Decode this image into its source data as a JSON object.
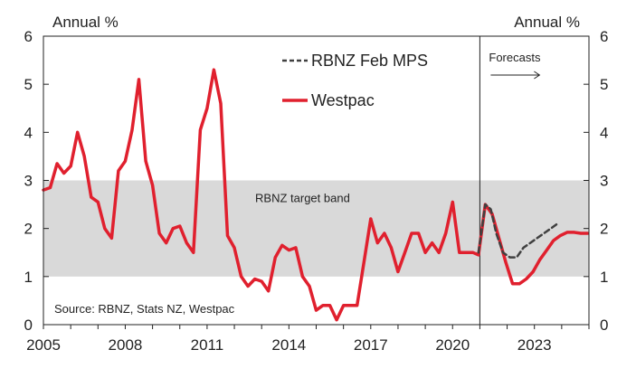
{
  "chart_data": {
    "type": "line",
    "left_unit_label": "Annual %",
    "right_unit_label": "Annual %",
    "ylim": [
      0,
      6
    ],
    "xlim": [
      2005,
      2025
    ],
    "y_ticks": [
      "0",
      "1",
      "2",
      "3",
      "4",
      "5",
      "6"
    ],
    "x_ticks": [
      {
        "label": "2005",
        "x": 2005
      },
      {
        "label": "2008",
        "x": 2008
      },
      {
        "label": "2011",
        "x": 2011
      },
      {
        "label": "2014",
        "x": 2014
      },
      {
        "label": "2017",
        "x": 2017
      },
      {
        "label": "2020",
        "x": 2020
      },
      {
        "label": "2023",
        "x": 2023
      }
    ],
    "band": {
      "label": "RBNZ target band",
      "low": 1,
      "high": 3,
      "color": "#d9d9d9"
    },
    "forecast_start": 2021,
    "forecast_label": "Forecasts",
    "source_note": "Source: RBNZ, Stats NZ, Westpac",
    "series": [
      {
        "name": "RBNZ Feb MPS",
        "style": "dashed",
        "color": "#404040",
        "points": [
          [
            2020.95,
            1.5
          ],
          [
            2021.2,
            2.5
          ],
          [
            2021.4,
            2.4
          ],
          [
            2021.6,
            1.9
          ],
          [
            2021.85,
            1.5
          ],
          [
            2022.1,
            1.4
          ],
          [
            2022.35,
            1.4
          ],
          [
            2022.6,
            1.6
          ],
          [
            2022.85,
            1.7
          ],
          [
            2023.1,
            1.8
          ],
          [
            2023.35,
            1.9
          ],
          [
            2023.6,
            2.0
          ],
          [
            2023.85,
            2.1
          ]
        ]
      },
      {
        "name": "Westpac",
        "style": "solid",
        "color": "#e0202e",
        "points": [
          [
            2005.0,
            2.8
          ],
          [
            2005.25,
            2.85
          ],
          [
            2005.5,
            3.35
          ],
          [
            2005.75,
            3.15
          ],
          [
            2006.0,
            3.3
          ],
          [
            2006.25,
            4.0
          ],
          [
            2006.5,
            3.5
          ],
          [
            2006.75,
            2.65
          ],
          [
            2007.0,
            2.55
          ],
          [
            2007.25,
            2.0
          ],
          [
            2007.5,
            1.8
          ],
          [
            2007.75,
            3.2
          ],
          [
            2008.0,
            3.4
          ],
          [
            2008.25,
            4.05
          ],
          [
            2008.5,
            5.1
          ],
          [
            2008.75,
            3.4
          ],
          [
            2009.0,
            2.9
          ],
          [
            2009.25,
            1.9
          ],
          [
            2009.5,
            1.7
          ],
          [
            2009.75,
            2.0
          ],
          [
            2010.0,
            2.05
          ],
          [
            2010.25,
            1.7
          ],
          [
            2010.5,
            1.5
          ],
          [
            2010.75,
            4.05
          ],
          [
            2011.0,
            4.5
          ],
          [
            2011.25,
            5.3
          ],
          [
            2011.5,
            4.6
          ],
          [
            2011.75,
            1.85
          ],
          [
            2012.0,
            1.6
          ],
          [
            2012.25,
            1.0
          ],
          [
            2012.5,
            0.8
          ],
          [
            2012.75,
            0.95
          ],
          [
            2013.0,
            0.9
          ],
          [
            2013.25,
            0.7
          ],
          [
            2013.5,
            1.4
          ],
          [
            2013.75,
            1.65
          ],
          [
            2014.0,
            1.55
          ],
          [
            2014.25,
            1.6
          ],
          [
            2014.5,
            1.0
          ],
          [
            2014.75,
            0.8
          ],
          [
            2015.0,
            0.3
          ],
          [
            2015.25,
            0.4
          ],
          [
            2015.5,
            0.4
          ],
          [
            2015.75,
            0.1
          ],
          [
            2016.0,
            0.4
          ],
          [
            2016.25,
            0.4
          ],
          [
            2016.5,
            0.4
          ],
          [
            2016.75,
            1.3
          ],
          [
            2017.0,
            2.2
          ],
          [
            2017.25,
            1.7
          ],
          [
            2017.5,
            1.9
          ],
          [
            2017.75,
            1.6
          ],
          [
            2018.0,
            1.1
          ],
          [
            2018.25,
            1.5
          ],
          [
            2018.5,
            1.9
          ],
          [
            2018.75,
            1.9
          ],
          [
            2019.0,
            1.5
          ],
          [
            2019.25,
            1.7
          ],
          [
            2019.5,
            1.5
          ],
          [
            2019.75,
            1.9
          ],
          [
            2020.0,
            2.55
          ],
          [
            2020.25,
            1.5
          ],
          [
            2020.5,
            1.5
          ],
          [
            2020.75,
            1.5
          ],
          [
            2020.95,
            1.45
          ],
          [
            2021.2,
            2.5
          ],
          [
            2021.45,
            2.3
          ],
          [
            2021.7,
            1.8
          ],
          [
            2021.95,
            1.3
          ],
          [
            2022.2,
            0.85
          ],
          [
            2022.45,
            0.85
          ],
          [
            2022.7,
            0.95
          ],
          [
            2022.95,
            1.1
          ],
          [
            2023.2,
            1.35
          ],
          [
            2023.45,
            1.55
          ],
          [
            2023.7,
            1.75
          ],
          [
            2023.95,
            1.85
          ],
          [
            2024.2,
            1.92
          ],
          [
            2024.45,
            1.92
          ],
          [
            2024.7,
            1.9
          ],
          [
            2024.95,
            1.9
          ]
        ]
      }
    ]
  }
}
